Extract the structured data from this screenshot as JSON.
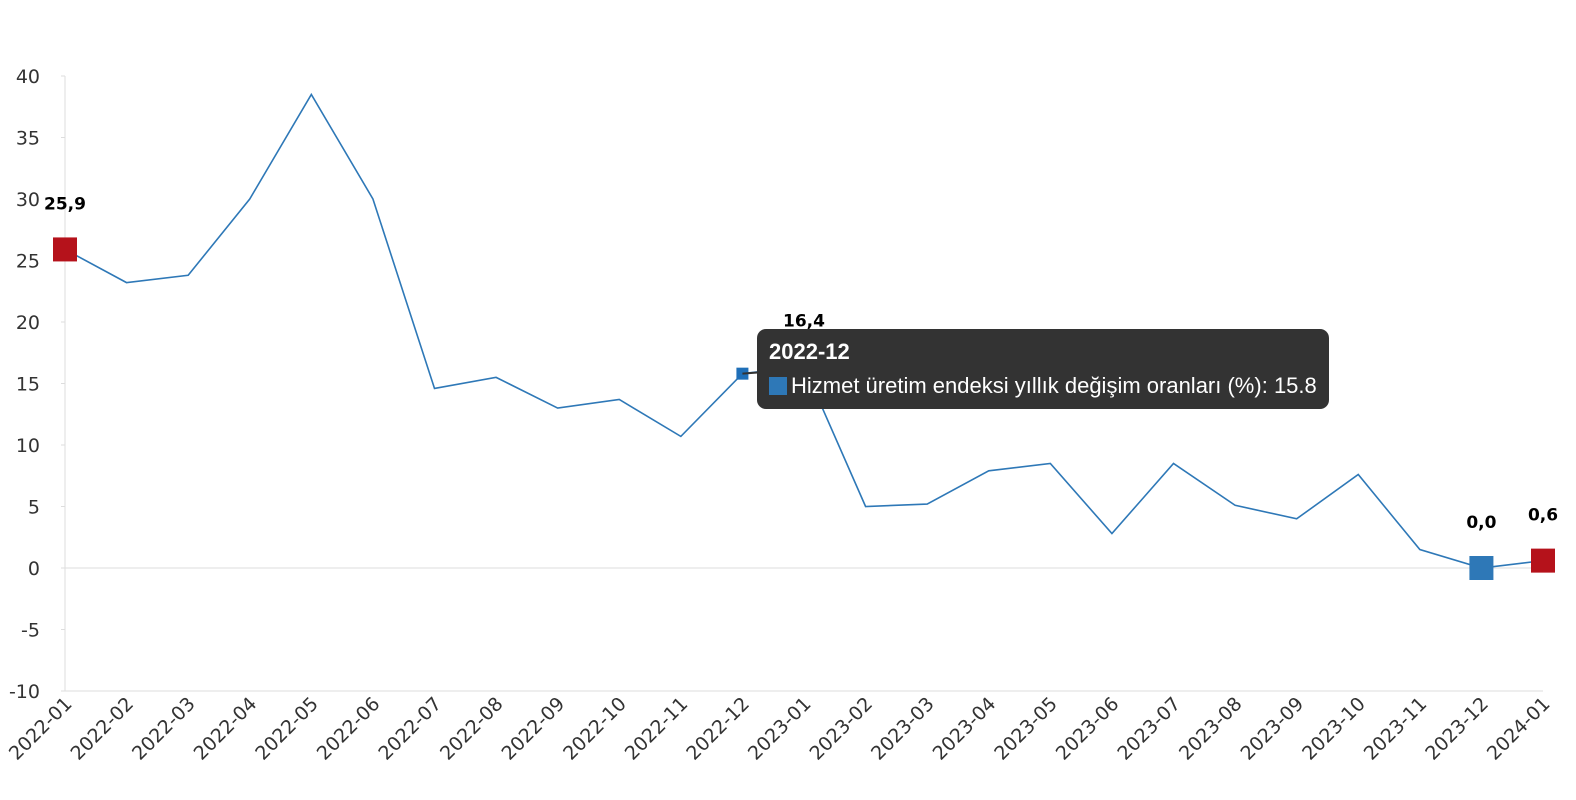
{
  "chart_data": {
    "type": "line",
    "categories": [
      "2022-01",
      "2022-02",
      "2022-03",
      "2022-04",
      "2022-05",
      "2022-06",
      "2022-07",
      "2022-08",
      "2022-09",
      "2022-10",
      "2022-11",
      "2022-12",
      "2023-01",
      "2023-02",
      "2023-03",
      "2023-04",
      "2023-05",
      "2023-06",
      "2023-07",
      "2023-08",
      "2023-09",
      "2023-10",
      "2023-11",
      "2023-12",
      "2024-01"
    ],
    "series": [
      {
        "name": "Hizmet üretim endeksi yıllık değişim oranları (%)",
        "color": "#2e78b7",
        "values": [
          25.9,
          23.2,
          23.8,
          30.0,
          38.5,
          30.0,
          14.6,
          15.5,
          13.0,
          13.7,
          10.7,
          15.8,
          16.4,
          5.0,
          5.2,
          7.9,
          8.5,
          2.8,
          8.5,
          5.1,
          4.0,
          7.6,
          1.5,
          0.0,
          0.6
        ],
        "value_labels": [
          "25,9",
          null,
          null,
          null,
          null,
          null,
          null,
          null,
          null,
          null,
          null,
          null,
          "16,4",
          null,
          null,
          null,
          null,
          null,
          null,
          null,
          null,
          null,
          null,
          "0,0",
          "0,6"
        ],
        "marker_colors": [
          "#b5121b",
          null,
          null,
          null,
          null,
          null,
          null,
          null,
          null,
          null,
          null,
          "#1f6fb8",
          "#b5121b",
          null,
          null,
          null,
          null,
          null,
          null,
          null,
          null,
          null,
          null,
          "#2e78b7",
          "#b5121b"
        ]
      }
    ],
    "ylim": [
      -10,
      40
    ],
    "yticks": [
      -10,
      -5,
      0,
      5,
      10,
      15,
      20,
      25,
      30,
      35,
      40
    ],
    "grid": false,
    "tooltip_index": 11
  }
}
